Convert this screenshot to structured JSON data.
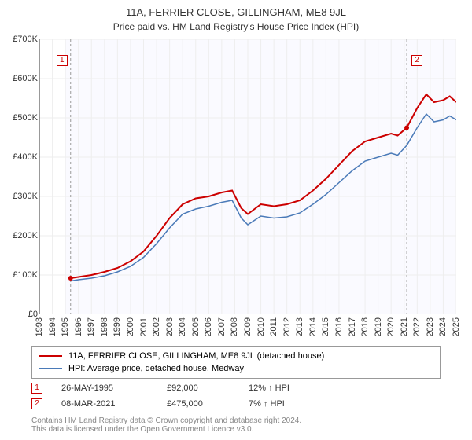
{
  "title": "11A, FERRIER CLOSE, GILLINGHAM, ME8 9JL",
  "subtitle": "Price paid vs. HM Land Registry's House Price Index (HPI)",
  "chart": {
    "type": "line",
    "background_color": "#ffffff",
    "plot_background_color": "#fafaff",
    "grid_color": "#eeeeee",
    "axis_color": "#333333",
    "label_fontsize": 11,
    "xlim": [
      1993,
      2025
    ],
    "ylim": [
      0,
      700000
    ],
    "ytick_step": 100000,
    "ytick_labels": [
      "£0",
      "£100K",
      "£200K",
      "£300K",
      "£400K",
      "£500K",
      "£600K",
      "£700K"
    ],
    "xtick_step": 1,
    "xtick_labels": [
      "1993",
      "1994",
      "1995",
      "1996",
      "1997",
      "1998",
      "1999",
      "2000",
      "2001",
      "2002",
      "2003",
      "2004",
      "2005",
      "2006",
      "2007",
      "2008",
      "2009",
      "2010",
      "2011",
      "2012",
      "2013",
      "2014",
      "2015",
      "2016",
      "2017",
      "2018",
      "2019",
      "2020",
      "2021",
      "2022",
      "2023",
      "2024",
      "2025"
    ],
    "series": [
      {
        "name": "11A, FERRIER CLOSE, GILLINGHAM, ME8 9JL (detached house)",
        "color": "#cc0000",
        "line_width": 2,
        "data": [
          [
            1995.4,
            92000
          ],
          [
            1996,
            95000
          ],
          [
            1997,
            100000
          ],
          [
            1998,
            108000
          ],
          [
            1999,
            118000
          ],
          [
            2000,
            135000
          ],
          [
            2001,
            160000
          ],
          [
            2002,
            200000
          ],
          [
            2003,
            245000
          ],
          [
            2004,
            280000
          ],
          [
            2005,
            295000
          ],
          [
            2006,
            300000
          ],
          [
            2007,
            310000
          ],
          [
            2007.8,
            315000
          ],
          [
            2008.5,
            270000
          ],
          [
            2009,
            255000
          ],
          [
            2010,
            280000
          ],
          [
            2011,
            275000
          ],
          [
            2012,
            280000
          ],
          [
            2013,
            290000
          ],
          [
            2014,
            315000
          ],
          [
            2015,
            345000
          ],
          [
            2016,
            380000
          ],
          [
            2017,
            415000
          ],
          [
            2018,
            440000
          ],
          [
            2019,
            450000
          ],
          [
            2020,
            460000
          ],
          [
            2020.5,
            455000
          ],
          [
            2021.2,
            475000
          ],
          [
            2022,
            525000
          ],
          [
            2022.7,
            560000
          ],
          [
            2023.3,
            540000
          ],
          [
            2024,
            545000
          ],
          [
            2024.5,
            555000
          ],
          [
            2025,
            540000
          ]
        ]
      },
      {
        "name": "HPI: Average price, detached house, Medway",
        "color": "#4a7ab8",
        "line_width": 1.5,
        "data": [
          [
            1995.4,
            85000
          ],
          [
            1996,
            88000
          ],
          [
            1997,
            92000
          ],
          [
            1998,
            98000
          ],
          [
            1999,
            108000
          ],
          [
            2000,
            122000
          ],
          [
            2001,
            145000
          ],
          [
            2002,
            180000
          ],
          [
            2003,
            220000
          ],
          [
            2004,
            255000
          ],
          [
            2005,
            268000
          ],
          [
            2006,
            275000
          ],
          [
            2007,
            285000
          ],
          [
            2007.8,
            290000
          ],
          [
            2008.5,
            245000
          ],
          [
            2009,
            228000
          ],
          [
            2010,
            250000
          ],
          [
            2011,
            245000
          ],
          [
            2012,
            248000
          ],
          [
            2013,
            258000
          ],
          [
            2014,
            280000
          ],
          [
            2015,
            305000
          ],
          [
            2016,
            335000
          ],
          [
            2017,
            365000
          ],
          [
            2018,
            390000
          ],
          [
            2019,
            400000
          ],
          [
            2020,
            410000
          ],
          [
            2020.5,
            405000
          ],
          [
            2021.2,
            430000
          ],
          [
            2022,
            475000
          ],
          [
            2022.7,
            510000
          ],
          [
            2023.3,
            490000
          ],
          [
            2024,
            495000
          ],
          [
            2024.5,
            505000
          ],
          [
            2025,
            495000
          ]
        ]
      }
    ],
    "markers": [
      {
        "label": "1",
        "color": "#cc0000",
        "x": 1995.4,
        "y": 92000,
        "date": "26-MAY-1995",
        "price": "£92,000",
        "hpi_diff": "12% ↑ HPI"
      },
      {
        "label": "2",
        "color": "#cc0000",
        "x": 2021.2,
        "y": 475000,
        "date": "08-MAR-2021",
        "price": "£475,000",
        "hpi_diff": "7% ↑ HPI"
      }
    ]
  },
  "legend": {
    "items": [
      {
        "color": "#cc0000",
        "label": "11A, FERRIER CLOSE, GILLINGHAM, ME8 9JL (detached house)"
      },
      {
        "color": "#4a7ab8",
        "label": "HPI: Average price, detached house, Medway"
      }
    ]
  },
  "footer_line1": "Contains HM Land Registry data © Crown copyright and database right 2024.",
  "footer_line2": "This data is licensed under the Open Government Licence v3.0."
}
